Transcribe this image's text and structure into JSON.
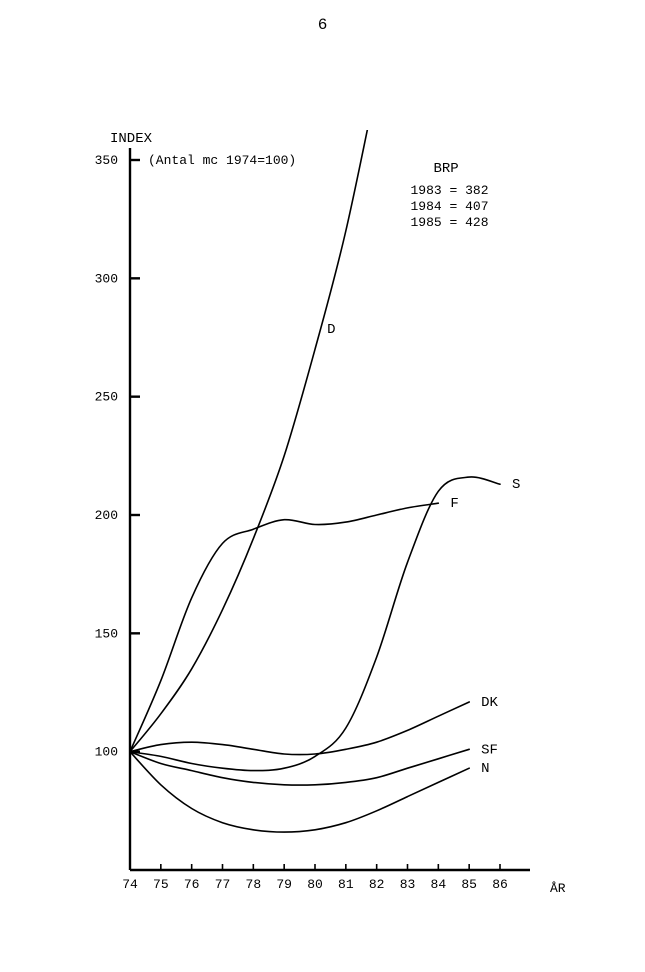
{
  "page_number": "6",
  "chart": {
    "type": "line",
    "axis_title_y": "INDEX",
    "subtitle": "(Antal mc 1974=100)",
    "x_label_suffix": "ÅR",
    "x": {
      "min": 74,
      "max": 86,
      "ticks": [
        74,
        75,
        76,
        77,
        78,
        79,
        80,
        81,
        82,
        83,
        84,
        85,
        86
      ]
    },
    "y": {
      "min": 50,
      "max": 350,
      "ticks": [
        100,
        150,
        200,
        250,
        300,
        350
      ]
    },
    "background_color": "#ffffff",
    "axis_color": "#000000",
    "axis_width": 2.4,
    "tick_len_major": 10,
    "tick_len_minor": 6,
    "font_size_axis_label": 14,
    "font_size_tick": 13,
    "font_size_series_label": 14,
    "font_size_annotation": 14,
    "line_color": "#000000",
    "line_width": 1.6,
    "annotation": {
      "title": "BRP",
      "lines": [
        "1983 = 382",
        "1984 = 407",
        "1985 = 428"
      ]
    },
    "series": [
      {
        "name": "D",
        "label": "D",
        "label_pos": "mid-right",
        "points": [
          {
            "x": 74,
            "y": 100
          },
          {
            "x": 75,
            "y": 116
          },
          {
            "x": 76,
            "y": 135
          },
          {
            "x": 77,
            "y": 160
          },
          {
            "x": 78,
            "y": 190
          },
          {
            "x": 79,
            "y": 225
          },
          {
            "x": 80,
            "y": 270
          },
          {
            "x": 81,
            "y": 320
          },
          {
            "x": 82,
            "y": 382
          }
        ]
      },
      {
        "name": "F",
        "label": "F",
        "label_pos": "end",
        "points": [
          {
            "x": 74,
            "y": 100
          },
          {
            "x": 75,
            "y": 130
          },
          {
            "x": 76,
            "y": 165
          },
          {
            "x": 77,
            "y": 188
          },
          {
            "x": 78,
            "y": 194
          },
          {
            "x": 79,
            "y": 198
          },
          {
            "x": 80,
            "y": 196
          },
          {
            "x": 81,
            "y": 197
          },
          {
            "x": 82,
            "y": 200
          },
          {
            "x": 83,
            "y": 203
          },
          {
            "x": 84,
            "y": 205
          }
        ]
      },
      {
        "name": "S",
        "label": "S",
        "label_pos": "end",
        "points": [
          {
            "x": 74,
            "y": 100
          },
          {
            "x": 75,
            "y": 98
          },
          {
            "x": 76,
            "y": 95
          },
          {
            "x": 77,
            "y": 93
          },
          {
            "x": 78,
            "y": 92
          },
          {
            "x": 79,
            "y": 93
          },
          {
            "x": 80,
            "y": 98
          },
          {
            "x": 81,
            "y": 110
          },
          {
            "x": 82,
            "y": 140
          },
          {
            "x": 83,
            "y": 180
          },
          {
            "x": 84,
            "y": 210
          },
          {
            "x": 85,
            "y": 216
          },
          {
            "x": 86,
            "y": 213
          }
        ]
      },
      {
        "name": "DK",
        "label": "DK",
        "label_pos": "end",
        "points": [
          {
            "x": 74,
            "y": 100
          },
          {
            "x": 75,
            "y": 103
          },
          {
            "x": 76,
            "y": 104
          },
          {
            "x": 77,
            "y": 103
          },
          {
            "x": 78,
            "y": 101
          },
          {
            "x": 79,
            "y": 99
          },
          {
            "x": 80,
            "y": 99
          },
          {
            "x": 81,
            "y": 101
          },
          {
            "x": 82,
            "y": 104
          },
          {
            "x": 83,
            "y": 109
          },
          {
            "x": 84,
            "y": 115
          },
          {
            "x": 85,
            "y": 121
          }
        ]
      },
      {
        "name": "SF",
        "label": "SF",
        "label_pos": "end",
        "points": [
          {
            "x": 74,
            "y": 100
          },
          {
            "x": 75,
            "y": 95
          },
          {
            "x": 76,
            "y": 92
          },
          {
            "x": 77,
            "y": 89
          },
          {
            "x": 78,
            "y": 87
          },
          {
            "x": 79,
            "y": 86
          },
          {
            "x": 80,
            "y": 86
          },
          {
            "x": 81,
            "y": 87
          },
          {
            "x": 82,
            "y": 89
          },
          {
            "x": 83,
            "y": 93
          },
          {
            "x": 84,
            "y": 97
          },
          {
            "x": 85,
            "y": 101
          }
        ]
      },
      {
        "name": "N",
        "label": "N",
        "label_pos": "end",
        "points": [
          {
            "x": 74,
            "y": 100
          },
          {
            "x": 75,
            "y": 86
          },
          {
            "x": 76,
            "y": 76
          },
          {
            "x": 77,
            "y": 70
          },
          {
            "x": 78,
            "y": 67
          },
          {
            "x": 79,
            "y": 66
          },
          {
            "x": 80,
            "y": 67
          },
          {
            "x": 81,
            "y": 70
          },
          {
            "x": 82,
            "y": 75
          },
          {
            "x": 83,
            "y": 81
          },
          {
            "x": 84,
            "y": 87
          },
          {
            "x": 85,
            "y": 93
          }
        ]
      }
    ]
  }
}
